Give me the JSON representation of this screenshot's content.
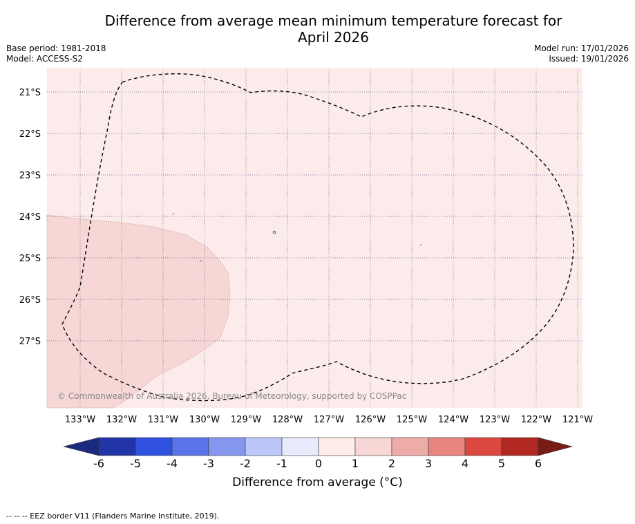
{
  "title": {
    "line1": "Difference from average mean minimum temperature forecast for",
    "line2": "April 2026"
  },
  "meta": {
    "base_period": "Base period: 1981-2018",
    "model": "Model: ACCESS-S2",
    "model_run": "Model run: 17/01/2026",
    "issued": "Issued: 19/01/2026"
  },
  "map": {
    "lat_labels": [
      "21°S",
      "22°S",
      "23°S",
      "24°S",
      "25°S",
      "26°S",
      "27°S"
    ],
    "lon_labels": [
      "133°W",
      "132°W",
      "131°W",
      "130°W",
      "129°W",
      "128°W",
      "127°W",
      "126°W",
      "125°W",
      "124°W",
      "123°W",
      "122°W",
      "121°W"
    ],
    "copyright": "© Commonwealth of Australia 2026, Bureau of Meteorology, supported by COSPPac",
    "background_category_color": "#fbeceb",
    "warm_region_color": "#f6d7d5"
  },
  "colorbar": {
    "ticks": [
      "-6",
      "-5",
      "-4",
      "-3",
      "-2",
      "-1",
      "0",
      "1",
      "2",
      "3",
      "4",
      "5",
      "6"
    ],
    "colors": [
      "#2235a8",
      "#3050e0",
      "#5a74e8",
      "#8596ee",
      "#bcc6f7",
      "#e8ebfc",
      "#fdecea",
      "#f6d7d5",
      "#eeaca8",
      "#e8857e",
      "#da4840",
      "#b22822"
    ],
    "extend_low_color": "#1b2a80",
    "extend_high_color": "#7a1c16",
    "label": "Difference from average (°C)"
  },
  "legend": {
    "eez": "--  --  -- EEZ border V11 (Flanders Marine Institute, 2019)."
  }
}
